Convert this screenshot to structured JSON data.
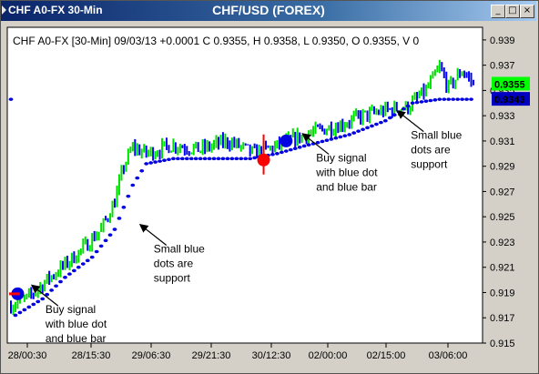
{
  "window": {
    "title_left": "CHF A0-FX 30-Min",
    "title_center": "CHF/USD (FOREX)",
    "minimize": "_",
    "maximize": "□",
    "close": "×"
  },
  "colors": {
    "up_bar": "#00e000",
    "down_bar": "#0000ff",
    "support_dot": "#0000e0",
    "signal_red": "#ff0000",
    "last_price_bg": "#00ff00",
    "support_price_bg": "#0000c0"
  },
  "chart_data": {
    "type": "bar",
    "title": "CHF A0-FX [30-Min] 09/03/13 +0.0001 C 0.9355, H 0.9358, L 0.9350, O 0.9355, V 0",
    "xlabel": "",
    "ylabel": "",
    "ylim": [
      0.915,
      0.94
    ],
    "grid": false,
    "y_ticks": [
      "0.939",
      "0.937",
      "0.935",
      "0.933",
      "0.931",
      "0.929",
      "0.927",
      "0.925",
      "0.923",
      "0.921",
      "0.919",
      "0.917",
      "0.915"
    ],
    "x_ticks": [
      "28/00:30",
      "28/15:30",
      "29/06:30",
      "29/21:30",
      "30/12:30",
      "02/00:00",
      "02/15:00",
      "03/06:00"
    ],
    "price_labels": [
      "0.9355",
      "0.9343"
    ],
    "last_price": 0.9355,
    "support_price": 0.9343,
    "price_path": [
      [
        0,
        0.918
      ],
      [
        8,
        0.9186
      ],
      [
        16,
        0.92
      ],
      [
        24,
        0.9212
      ],
      [
        32,
        0.9225
      ],
      [
        40,
        0.924
      ],
      [
        46,
        0.9262
      ],
      [
        50,
        0.929
      ],
      [
        54,
        0.9305
      ],
      [
        60,
        0.93
      ],
      [
        72,
        0.9307
      ],
      [
        84,
        0.9303
      ],
      [
        96,
        0.931
      ],
      [
        108,
        0.93
      ],
      [
        118,
        0.9306
      ],
      [
        126,
        0.9312
      ],
      [
        136,
        0.9318
      ],
      [
        146,
        0.9323
      ],
      [
        156,
        0.933
      ],
      [
        166,
        0.9334
      ],
      [
        176,
        0.9337
      ],
      [
        184,
        0.935
      ],
      [
        190,
        0.9368
      ],
      [
        194,
        0.9352
      ],
      [
        200,
        0.9366
      ],
      [
        205,
        0.9355
      ]
    ],
    "support_path": [
      [
        2,
        0.9172
      ],
      [
        14,
        0.9185
      ],
      [
        24,
        0.9202
      ],
      [
        36,
        0.9218
      ],
      [
        46,
        0.924
      ],
      [
        54,
        0.9275
      ],
      [
        60,
        0.9292
      ],
      [
        72,
        0.9296
      ],
      [
        90,
        0.9296
      ],
      [
        106,
        0.9296
      ],
      [
        118,
        0.93
      ],
      [
        130,
        0.9306
      ],
      [
        150,
        0.9315
      ],
      [
        166,
        0.9326
      ],
      [
        178,
        0.934
      ],
      [
        190,
        0.9343
      ],
      [
        205,
        0.9343
      ]
    ],
    "signals": [
      {
        "x": 3,
        "y": 0.9189,
        "kind": "blue"
      },
      {
        "x": 112,
        "y": 0.9295,
        "kind": "red"
      },
      {
        "x": 122,
        "y": 0.931,
        "kind": "blue"
      }
    ],
    "annotations": [
      {
        "lines": [
          "Buy signal",
          "with blue dot",
          "and blue bar"
        ],
        "x": 8,
        "y": 0.9178
      },
      {
        "lines": [
          "Small blue",
          "dots are",
          "support"
        ],
        "x": 56,
        "y": 0.9226
      },
      {
        "lines": [
          "Buy signal",
          "with blue dot",
          "and blue bar"
        ],
        "x": 128,
        "y": 0.9298
      },
      {
        "lines": [
          "Small blue",
          "dots are",
          "support"
        ],
        "x": 170,
        "y": 0.9316
      }
    ]
  }
}
